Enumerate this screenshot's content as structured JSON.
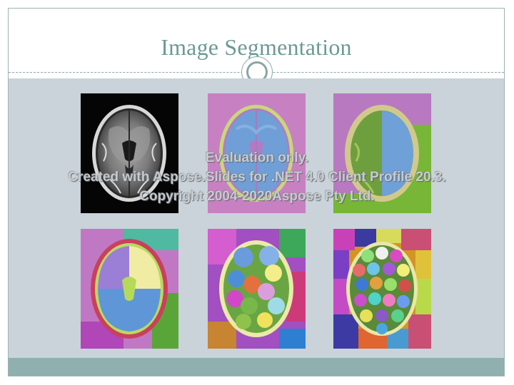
{
  "slide": {
    "title": "Image Segmentation"
  },
  "images": [
    {
      "name": "mri-scan-original",
      "kind": "grayscale MRI"
    },
    {
      "name": "segmentation-2-regions"
    },
    {
      "name": "segmentation-4-regions"
    },
    {
      "name": "segmentation-6-regions"
    },
    {
      "name": "segmentation-many-regions"
    },
    {
      "name": "segmentation-superpixels"
    }
  ],
  "watermark": {
    "line1": "Evaluation only.",
    "line2": "Created with Aspose.Slides for .NET 4.0 Client Profile 20.3.",
    "line3": "Copyright 2004-2020Aspose Pty Ltd."
  },
  "colors": {
    "title": "#6b9a94",
    "content_background": "#c9d3d9",
    "footer_band": "#8fb0ae",
    "frame": "#9fb3b3"
  }
}
